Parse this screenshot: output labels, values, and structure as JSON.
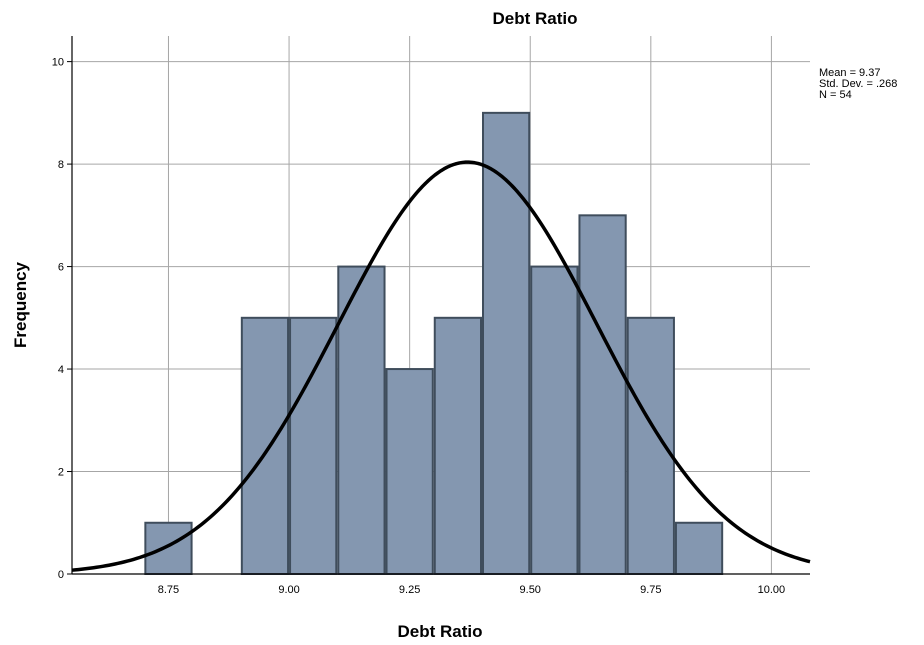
{
  "chart_data": {
    "type": "bar",
    "title": "Debt Ratio",
    "xlabel": "Debt Ratio",
    "ylabel": "Frequency",
    "xlim": [
      8.55,
      10.08
    ],
    "ylim": [
      0,
      10.5
    ],
    "bin_width": 0.1,
    "bins": [
      {
        "x0": 8.7,
        "x1": 8.8,
        "count": 1
      },
      {
        "x0": 8.8,
        "x1": 8.9,
        "count": 0
      },
      {
        "x0": 8.9,
        "x1": 9.0,
        "count": 5
      },
      {
        "x0": 9.0,
        "x1": 9.1,
        "count": 5
      },
      {
        "x0": 9.1,
        "x1": 9.2,
        "count": 6
      },
      {
        "x0": 9.2,
        "x1": 9.3,
        "count": 4
      },
      {
        "x0": 9.3,
        "x1": 9.4,
        "count": 5
      },
      {
        "x0": 9.4,
        "x1": 9.5,
        "count": 9
      },
      {
        "x0": 9.5,
        "x1": 9.6,
        "count": 6
      },
      {
        "x0": 9.6,
        "x1": 9.7,
        "count": 7
      },
      {
        "x0": 9.7,
        "x1": 9.8,
        "count": 5
      },
      {
        "x0": 9.8,
        "x1": 9.9,
        "count": 1
      }
    ],
    "x_ticks": [
      "8.75",
      "9.00",
      "9.25",
      "9.50",
      "9.75",
      "10.00"
    ],
    "y_ticks": [
      "0",
      "2",
      "4",
      "6",
      "8",
      "10"
    ],
    "normal_curve": {
      "mean": 9.37,
      "std": 0.268,
      "n": 54
    },
    "stats_legend": [
      "Mean = 9.37",
      "Std. Dev. = .268",
      "N = 54"
    ],
    "legend_position": "top-right",
    "grid": true,
    "bar_color": "#8497b0",
    "bar_stroke": "#3f4d5c",
    "curve_color": "#000000"
  }
}
